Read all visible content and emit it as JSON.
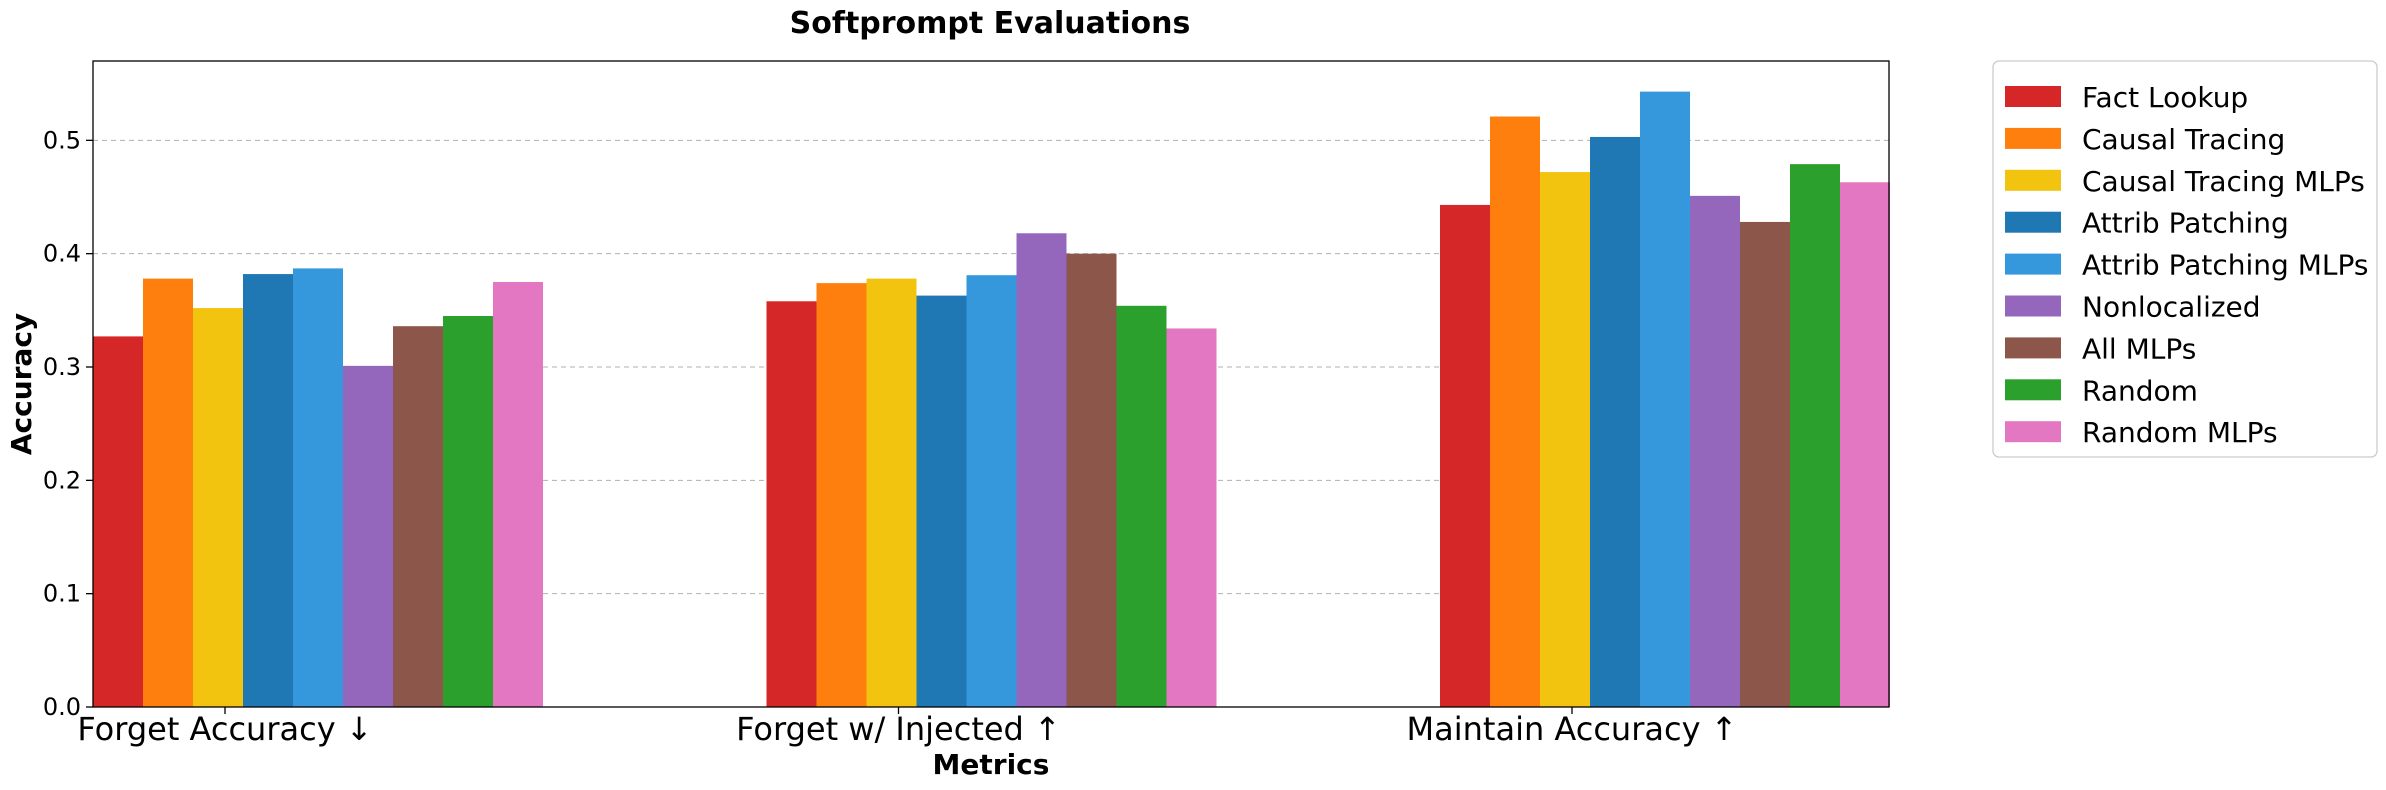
{
  "chart_data": {
    "type": "bar",
    "title": "Softprompt Evaluations",
    "xlabel": "Metrics",
    "ylabel": "Accuracy",
    "categories": [
      "Forget Accuracy ↓",
      "Forget w/ Injected ↑",
      "Maintain Accuracy ↑"
    ],
    "ylim": [
      0,
      0.57
    ],
    "yticks": [
      "0.0",
      "0.1",
      "0.2",
      "0.3",
      "0.4",
      "0.5"
    ],
    "grid": "horizontal dashed",
    "legend_position": "outside-right",
    "series": [
      {
        "name": "Fact Lookup",
        "color": "#d62728",
        "values": [
          0.327,
          0.358,
          0.443
        ]
      },
      {
        "name": "Causal Tracing",
        "color": "#ff7f0e",
        "values": [
          0.378,
          0.374,
          0.521
        ]
      },
      {
        "name": "Causal Tracing MLPs",
        "color": "#f2c40f",
        "values": [
          0.352,
          0.378,
          0.472
        ]
      },
      {
        "name": "Attrib Patching",
        "color": "#1f77b4",
        "values": [
          0.382,
          0.363,
          0.503
        ]
      },
      {
        "name": "Attrib Patching MLPs",
        "color": "#3598dc",
        "values": [
          0.387,
          0.381,
          0.543
        ]
      },
      {
        "name": "Nonlocalized",
        "color": "#9467bd",
        "values": [
          0.301,
          0.418,
          0.451
        ]
      },
      {
        "name": "All MLPs",
        "color": "#8c564b",
        "values": [
          0.336,
          0.4,
          0.428
        ]
      },
      {
        "name": "Random",
        "color": "#2ca02c",
        "values": [
          0.345,
          0.354,
          0.479
        ]
      },
      {
        "name": "Random MLPs",
        "color": "#e377c2",
        "values": [
          0.375,
          0.334,
          0.463
        ]
      }
    ]
  }
}
